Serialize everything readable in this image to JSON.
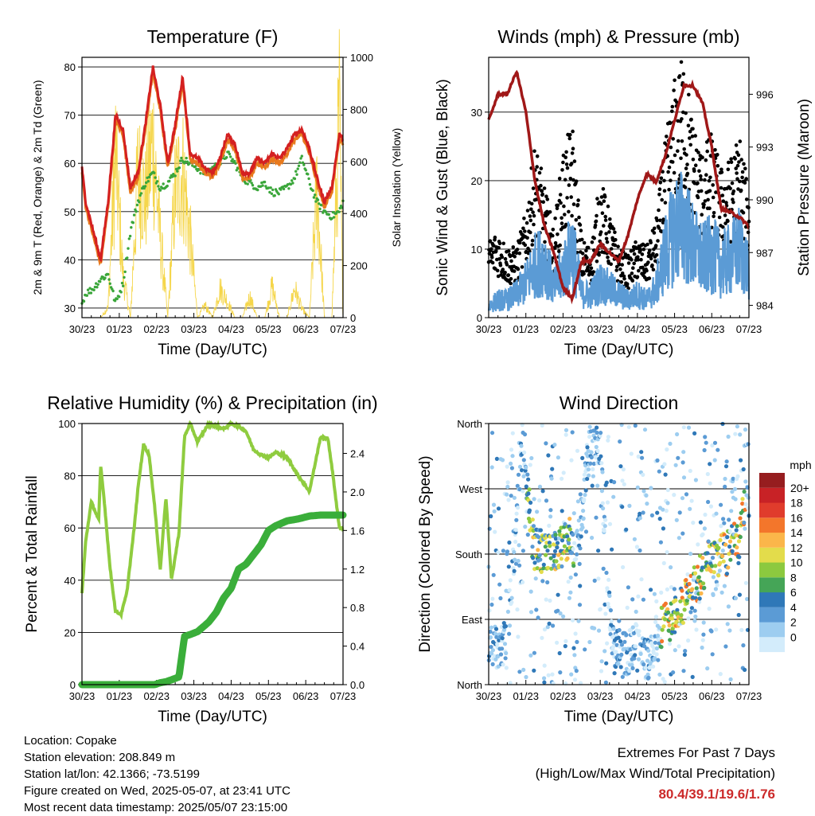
{
  "x_ticks": [
    "30/23",
    "01/23",
    "02/23",
    "03/23",
    "04/23",
    "05/23",
    "06/23",
    "07/23"
  ],
  "time_axis_label": "Time (Day/UTC)",
  "colors": {
    "temp2m": "#d42020",
    "temp9m": "#e87a1e",
    "dewpoint": "#3aa63a",
    "solar": "#f5d64b",
    "wind": "#5b9bd5",
    "gust": "#000000",
    "pressure": "#a01818",
    "rh": "#8fcc3f",
    "precip": "#3aae3a"
  },
  "chart_data": [
    {
      "type": "line",
      "title": "Temperature (F)",
      "xlabel": "Time (Day/UTC)",
      "ylabel": "2m & 9m T (Red, Orange) & 2m Td (Green)",
      "ylabel_right": "Solar Insolation (Yellow)",
      "ylim": [
        28,
        82
      ],
      "yticks": [
        30,
        40,
        50,
        60,
        70,
        80
      ],
      "ylim_right": [
        0,
        1000
      ],
      "yticks_right": [
        0,
        200,
        400,
        600,
        800,
        1000
      ],
      "x": [
        0,
        0.1,
        0.3,
        0.5,
        0.7,
        0.9,
        1.1,
        1.3,
        1.5,
        1.7,
        1.9,
        2.1,
        2.3,
        2.5,
        2.7,
        2.9,
        3.1,
        3.3,
        3.5,
        3.7,
        3.9,
        4.1,
        4.3,
        4.5,
        4.7,
        4.9,
        5.1,
        5.3,
        5.5,
        5.7,
        5.9,
        6.1,
        6.3,
        6.5,
        6.7,
        6.9,
        7.0
      ],
      "series": [
        {
          "values": [
            59,
            52,
            46,
            40,
            52,
            70,
            67,
            55,
            58,
            68,
            80,
            72,
            60,
            68,
            78,
            62,
            61,
            59,
            58,
            61,
            66,
            64,
            58,
            58,
            61,
            60,
            62,
            61,
            63,
            66,
            67,
            63,
            57,
            52,
            55,
            66,
            65
          ]
        },
        {
          "values": [
            58,
            51,
            45,
            39,
            51,
            69,
            66,
            54,
            57,
            67,
            79,
            71,
            59,
            67,
            77,
            61,
            60,
            58,
            57,
            60,
            65,
            63,
            57,
            57,
            60,
            59,
            61,
            60,
            62,
            65,
            66,
            62,
            56,
            51,
            54,
            65,
            64
          ]
        },
        {
          "values": [
            31,
            33,
            34,
            36,
            37,
            31,
            35,
            46,
            52,
            56,
            58,
            55,
            56,
            58,
            61,
            60,
            59,
            58,
            59,
            60,
            62,
            60,
            57,
            56,
            55,
            56,
            54,
            54,
            55,
            57,
            61,
            56,
            52,
            50,
            49,
            50,
            52
          ]
        },
        {
          "values": [
            0,
            0,
            0,
            0,
            50,
            780,
            200,
            0,
            700,
            560,
            860,
            380,
            0,
            620,
            700,
            380,
            0,
            60,
            0,
            140,
            80,
            0,
            0,
            100,
            0,
            0,
            150,
            0,
            0,
            140,
            40,
            0,
            620,
            0,
            0,
            980,
            0
          ]
        }
      ]
    },
    {
      "type": "scatter",
      "title": "Winds (mph) & Pressure (mb)",
      "xlabel": "Time (Day/UTC)",
      "ylabel": "Sonic Wind & Gust (Blue, Black)",
      "ylabel_right": "Station Pressure (Maroon)",
      "ylim": [
        0,
        38
      ],
      "yticks": [
        0,
        10,
        20,
        30
      ],
      "ylim_right": [
        983.3,
        998.1
      ],
      "yticks_right": [
        984,
        987,
        990,
        993,
        996
      ],
      "x": [
        0,
        0.25,
        0.5,
        0.75,
        1.0,
        1.25,
        1.5,
        1.75,
        2.0,
        2.25,
        2.5,
        2.75,
        3.0,
        3.25,
        3.5,
        3.75,
        4.0,
        4.25,
        4.5,
        4.75,
        5.0,
        5.25,
        5.5,
        5.75,
        6.0,
        6.25,
        6.5,
        6.75,
        7.0
      ],
      "series": [
        {
          "values": [
            2,
            3,
            3,
            4,
            6,
            9,
            10,
            5,
            8,
            12,
            4,
            4,
            6,
            5,
            4,
            3,
            4,
            3,
            5,
            11,
            15,
            16,
            12,
            10,
            11,
            9,
            10,
            12,
            8
          ]
        },
        {
          "values": [
            9,
            10,
            8,
            8,
            12,
            20,
            15,
            10,
            19,
            22,
            9,
            8,
            16,
            12,
            8,
            7,
            9,
            8,
            11,
            20,
            27,
            30,
            22,
            19,
            21,
            17,
            18,
            21,
            14
          ]
        },
        {
          "values": [
            994.5,
            996.0,
            996.0,
            997.3,
            995.0,
            991.0,
            988.5,
            987.0,
            985.0,
            984.4,
            986.5,
            986.5,
            987.5,
            987.0,
            986.5,
            988.0,
            990.0,
            991.5,
            991.0,
            992.5,
            994.5,
            996.5,
            996.5,
            995.5,
            993.0,
            989.5,
            989.3,
            989.0,
            988.5
          ]
        }
      ]
    },
    {
      "type": "line",
      "title": "Relative Humidity (%) & Precipitation (in)",
      "xlabel": "Time (Day/UTC)",
      "ylabel": "Percent & Total Rainfall",
      "ylim": [
        0,
        100
      ],
      "yticks": [
        0,
        20,
        40,
        60,
        80,
        100
      ],
      "ylim_right": [
        0,
        2.71
      ],
      "yticks_right": [
        0.0,
        0.4,
        0.8,
        1.2,
        1.6,
        2.0,
        2.4
      ],
      "x": [
        0,
        0.1,
        0.25,
        0.45,
        0.5,
        0.6,
        0.75,
        0.9,
        1.05,
        1.2,
        1.4,
        1.5,
        1.65,
        1.8,
        1.95,
        2.1,
        2.25,
        2.4,
        2.6,
        2.75,
        2.9,
        3.1,
        3.4,
        3.6,
        3.8,
        4.0,
        4.2,
        4.4,
        4.6,
        4.8,
        5.0,
        5.2,
        5.5,
        5.8,
        6.1,
        6.4,
        6.6,
        6.75,
        6.9,
        7.0
      ],
      "series": [
        {
          "values": [
            35,
            55,
            70,
            63,
            84,
            70,
            45,
            28,
            27,
            35,
            60,
            75,
            92,
            88,
            68,
            44,
            72,
            40,
            58,
            95,
            100,
            93,
            100,
            99,
            98,
            100,
            99,
            97,
            90,
            88,
            87,
            89,
            87,
            80,
            74,
            95,
            94,
            78,
            60,
            60
          ]
        },
        {
          "values": [
            0,
            0,
            0,
            0,
            0,
            0,
            0,
            0,
            0,
            0,
            0,
            0,
            0,
            0,
            0,
            0.02,
            0.03,
            0.05,
            0.08,
            0.5,
            0.52,
            0.55,
            0.65,
            0.75,
            0.9,
            1.0,
            1.2,
            1.25,
            1.35,
            1.45,
            1.6,
            1.65,
            1.7,
            1.72,
            1.75,
            1.76,
            1.76,
            1.76,
            1.76,
            1.76
          ]
        }
      ]
    },
    {
      "type": "scatter",
      "title": "Wind Direction",
      "xlabel": "Time (Day/UTC)",
      "ylabel": "Direction (Colored By Speed)",
      "ylim": [
        0,
        360
      ],
      "yticks": [
        "North",
        "East",
        "South",
        "West",
        "North"
      ],
      "colorbar_title": "mph",
      "colorbar_labels": [
        "0",
        "2",
        "4",
        "6",
        "8",
        "10",
        "12",
        "14",
        "16",
        "18",
        "20+"
      ],
      "colorbar_colors": [
        "#d3ecfb",
        "#9dcdf0",
        "#5b9bd5",
        "#2f78b8",
        "#45a557",
        "#8cc93f",
        "#e3dc4b",
        "#fbb64a",
        "#f3762b",
        "#e03c2c",
        "#c82226",
        "#961d1f"
      ],
      "x": [
        0.2,
        0.5,
        0.9,
        1.2,
        1.4,
        1.6,
        1.8,
        2.0,
        2.2,
        2.4,
        2.7,
        3.0,
        3.3,
        3.7,
        4.0,
        4.3,
        4.6,
        4.9,
        5.2,
        5.5,
        5.8,
        6.1,
        6.4,
        6.7,
        6.9
      ],
      "series": [
        {
          "values": [
            50,
            60,
            330,
            190,
            185,
            180,
            180,
            190,
            200,
            185,
            330,
            320,
            60,
            40,
            60,
            30,
            80,
            90,
            110,
            130,
            160,
            180,
            180,
            200,
            260
          ]
        }
      ]
    }
  ],
  "info": {
    "location": "Location: Copake",
    "elevation": "Station elevation: 208.849 m",
    "latlon": "Station lat/lon: 42.1366; -73.5199",
    "created": "Figure created on Wed, 2025-05-07, at 23:41 UTC",
    "recent": "Most recent data timestamp: 2025/05/07 23:15:00"
  },
  "extremes": {
    "line1": "Extremes For Past 7 Days",
    "line2": "(High/Low/Max Wind/Total Precipitation)",
    "values": "80.4/39.1/19.6/1.76"
  }
}
